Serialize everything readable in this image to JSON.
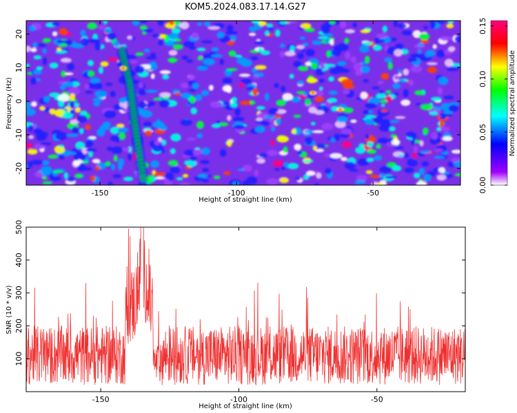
{
  "chart_data": [
    {
      "type": "heatmap",
      "title": "KOM5.2024.083.17.14.G27",
      "xlabel": "Height of straight line (km)",
      "ylabel": "Frequency (Hz)",
      "xlim": [
        -177,
        -18
      ],
      "ylim": [
        -25,
        24
      ],
      "x_ticks": [
        -150,
        -100,
        -50
      ],
      "x_tick_labels": [
        "-150",
        "-100",
        "-50"
      ],
      "y_ticks": [
        -20,
        -10,
        0,
        10,
        20
      ],
      "y_tick_labels": [
        "-20",
        "-10",
        "0",
        "10",
        "20"
      ],
      "colorbar": {
        "label": "Normalized spectral amplitude",
        "range": [
          0.0,
          0.155
        ],
        "ticks": [
          0.0,
          0.05,
          0.1,
          0.15
        ],
        "tick_labels": [
          "0.00",
          "0.05",
          "0.10",
          "0.15"
        ],
        "colors": [
          "#ffffff",
          "#8000ff",
          "#0000ff",
          "#00ffff",
          "#00ff00",
          "#ffff00",
          "#ff0000",
          "#ff0080"
        ]
      },
      "ridge": {
        "description_points": [
          [
            -142,
            15
          ],
          [
            -139,
            5
          ],
          [
            -137,
            -8
          ],
          [
            -134,
            -24
          ]
        ],
        "peak_points": [
          [
            -141.5,
            9.8
          ],
          [
            -72,
            2.5
          ],
          [
            -62,
            -2.5
          ]
        ]
      }
    },
    {
      "type": "line",
      "xlabel": "Height of straight line (km)",
      "ylabel": "SNR (10 * v/v)",
      "xlim": [
        -177,
        -18
      ],
      "ylim": [
        0,
        500
      ],
      "x_ticks": [
        -150,
        -100,
        -50
      ],
      "x_tick_labels": [
        "-150",
        "-100",
        "-50"
      ],
      "y_ticks": [
        100,
        200,
        300,
        400,
        500
      ],
      "y_tick_labels": [
        "100",
        "200",
        "300",
        "400",
        "500"
      ],
      "line_color": "#f03030",
      "baseline": 110,
      "peak": {
        "x": -135,
        "y": 500
      },
      "noise_band_top": 300
    }
  ]
}
